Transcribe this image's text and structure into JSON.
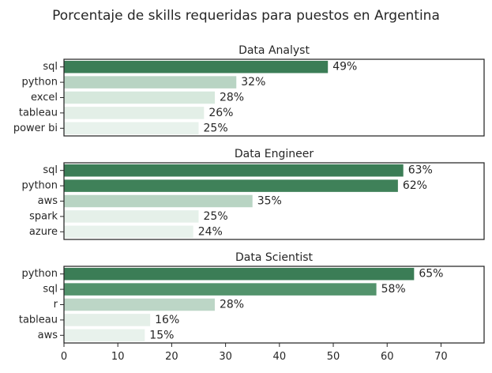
{
  "chart_data": {
    "type": "bar",
    "orientation": "horizontal",
    "title": "Porcentaje de skills requeridas para puestos en Argentina",
    "xlim": [
      0,
      78
    ],
    "x_ticks": [
      0,
      10,
      20,
      30,
      40,
      50,
      60,
      70
    ],
    "grid": false,
    "value_label_suffix": "%",
    "panels": [
      {
        "title": "Data Analyst",
        "categories": [
          "sql",
          "python",
          "excel",
          "tableau",
          "power bi"
        ],
        "values": [
          49,
          32,
          28,
          26,
          25
        ],
        "colors": [
          "#3b7d56",
          "#b8d4c3",
          "#d6e8dc",
          "#e3efe7",
          "#e8f2ec"
        ]
      },
      {
        "title": "Data Engineer",
        "categories": [
          "sql",
          "python",
          "aws",
          "spark",
          "azure"
        ],
        "values": [
          63,
          62,
          35,
          25,
          24
        ],
        "colors": [
          "#3b7d56",
          "#3f8159",
          "#b8d4c3",
          "#e5f0e9",
          "#e8f2ec"
        ]
      },
      {
        "title": "Data Scientist",
        "categories": [
          "python",
          "sql",
          "r",
          "tableau",
          "aws"
        ],
        "values": [
          65,
          58,
          28,
          16,
          15
        ],
        "colors": [
          "#3b7d56",
          "#53936c",
          "#bcd6c6",
          "#e4efe8",
          "#e8f2ec"
        ]
      }
    ]
  }
}
